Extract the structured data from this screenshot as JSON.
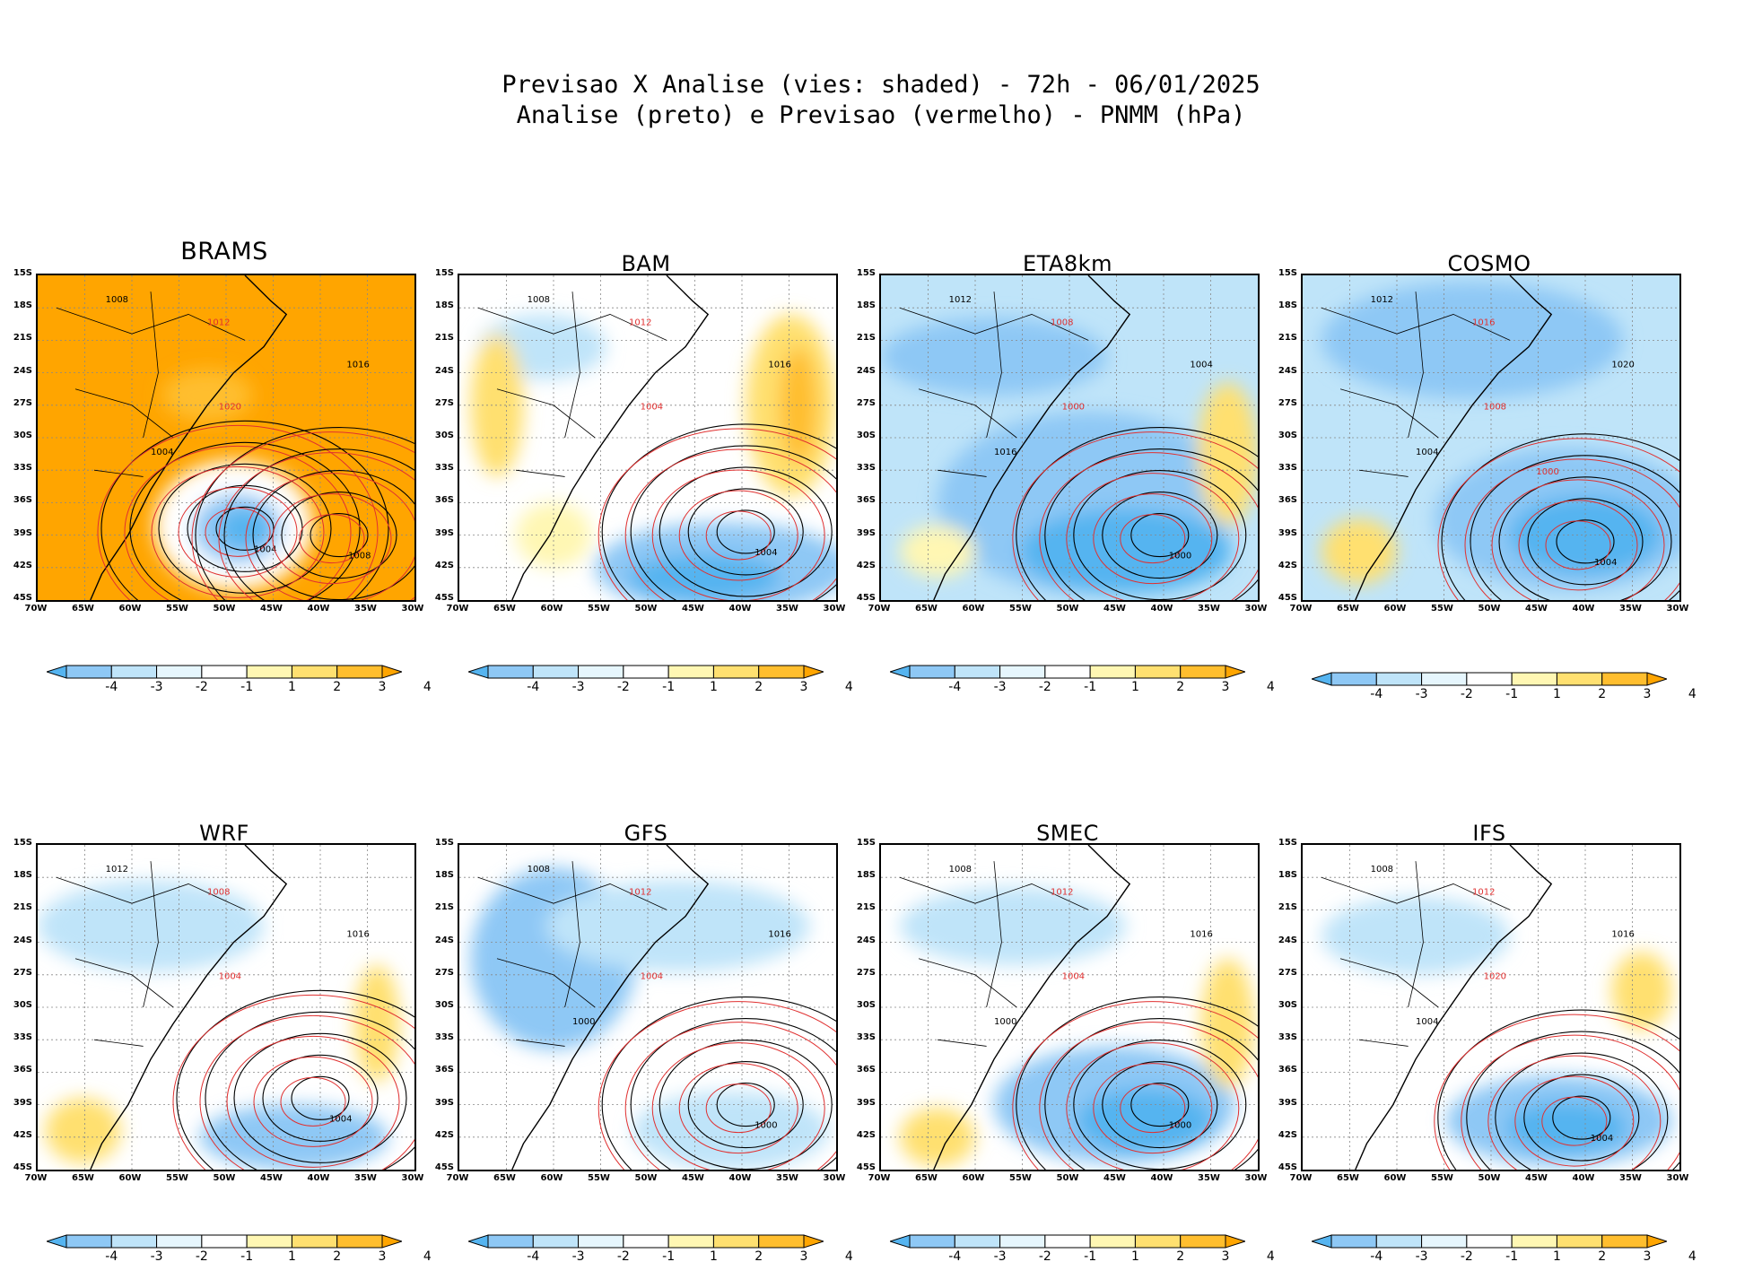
{
  "title": {
    "line1": "Previsao X Analise (vies: shaded) - 72h - 06/01/2025",
    "line2": "Analise (preto) e Previsao (vermelho) - PNMM (hPa)"
  },
  "lat_ticks": [
    "15S",
    "18S",
    "21S",
    "24S",
    "27S",
    "30S",
    "33S",
    "36S",
    "39S",
    "42S",
    "45S"
  ],
  "lon_ticks": [
    "70W",
    "65W",
    "60W",
    "55W",
    "50W",
    "45W",
    "40W",
    "35W",
    "30W"
  ],
  "colorbar": {
    "labels": [
      "-4",
      "-3",
      "-2",
      "-1",
      "1",
      "2",
      "3",
      "4"
    ],
    "colors": [
      "#55b4f0",
      "#8ec8f5",
      "#bfe4f9",
      "#e6f6fd",
      "#ffffff",
      "#fff7b3",
      "#ffe070",
      "#ffbe2e",
      "#ffa500"
    ]
  },
  "panels": [
    {
      "title": "BRAMS",
      "background": "#ffa500",
      "lows": [
        {
          "label": "1004"
        },
        {
          "label": "1008"
        }
      ],
      "labels": [
        "1008",
        "1012",
        "1016",
        "1020",
        "1004"
      ]
    },
    {
      "title": "BAM",
      "background": "#ffffff",
      "lows": [
        {
          "label": "1004"
        }
      ],
      "labels": [
        "1008",
        "1012",
        "1016",
        "1004"
      ]
    },
    {
      "title": "ETA8km",
      "background": "#bfe4f9",
      "lows": [
        {
          "label": "1000"
        }
      ],
      "labels": [
        "1012",
        "1008",
        "1004",
        "1000",
        "1016"
      ]
    },
    {
      "title": "COSMO",
      "background": "#bfe4f9",
      "lows": [
        {
          "label": "1004"
        }
      ],
      "labels": [
        "1012",
        "1016",
        "1020",
        "1008",
        "1004",
        "1000"
      ]
    },
    {
      "title": "WRF",
      "background": "#ffffff",
      "lows": [
        {
          "label": "1004"
        }
      ],
      "labels": [
        "1012",
        "1008",
        "1016",
        "1004"
      ]
    },
    {
      "title": "GFS",
      "background": "#ffffff",
      "lows": [
        {
          "label": "1000"
        }
      ],
      "labels": [
        "1008",
        "1012",
        "1016",
        "1004",
        "1000"
      ]
    },
    {
      "title": "SMEC",
      "background": "#ffffff",
      "lows": [
        {
          "label": "1000"
        }
      ],
      "labels": [
        "1008",
        "1012",
        "1016",
        "1004",
        "1000"
      ]
    },
    {
      "title": "IFS",
      "background": "#ffffff",
      "lows": [
        {
          "label": "1004"
        }
      ],
      "labels": [
        "1008",
        "1012",
        "1016",
        "1020",
        "1004"
      ]
    }
  ]
}
